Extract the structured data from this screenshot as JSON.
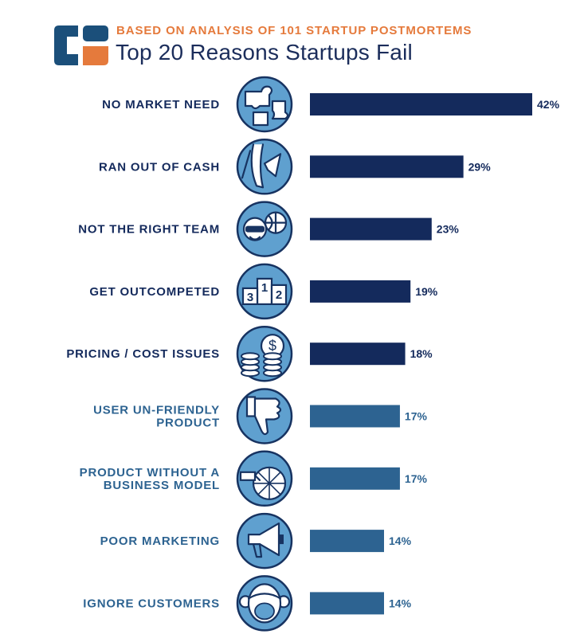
{
  "header": {
    "subtitle": "BASED ON ANALYSIS OF 101 STARTUP POSTMORTEMS",
    "title": "Top 20 Reasons Startups Fail"
  },
  "colors": {
    "dark_bar": "#142a5c",
    "light_bar": "#2d6391",
    "accent_orange": "#e57a3c",
    "icon_fill": "#5fa0cf",
    "icon_stroke": "#173361"
  },
  "chart_data": {
    "type": "bar",
    "orientation": "horizontal",
    "title": "Top 20 Reasons Startups Fail",
    "subtitle": "BASED ON ANALYSIS OF 101 STARTUP POSTMORTEMS",
    "categories": [
      [
        "NO MARKET NEED"
      ],
      [
        "RAN OUT OF CASH"
      ],
      [
        "NOT THE RIGHT TEAM"
      ],
      [
        "GET OUTCOMPETED"
      ],
      [
        "PRICING / COST ISSUES"
      ],
      [
        "USER UN-FRIENDLY",
        "PRODUCT"
      ],
      [
        "PRODUCT WITHOUT A",
        "BUSINESS MODEL"
      ],
      [
        "POOR MARKETING"
      ],
      [
        "IGNORE CUSTOMERS"
      ]
    ],
    "values": [
      42,
      29,
      23,
      19,
      18,
      17,
      17,
      14,
      14
    ],
    "value_labels": [
      "42%",
      "29%",
      "23%",
      "19%",
      "18%",
      "17%",
      "17%",
      "14%",
      "14%"
    ],
    "bar_shade": [
      "dark",
      "dark",
      "dark",
      "dark",
      "dark",
      "light",
      "light",
      "light",
      "light"
    ],
    "icons": [
      "puzzle-icon",
      "empty-pocket-icon",
      "team-icon",
      "podium-icon",
      "coins-icon",
      "thumbs-down-icon",
      "wheel-icon",
      "megaphone-icon",
      "monkey-icon"
    ],
    "podium_numbers": [
      "3",
      "1",
      "2"
    ],
    "xlim": [
      0,
      42
    ],
    "axis_visible": false,
    "grid": false,
    "legend": false
  }
}
